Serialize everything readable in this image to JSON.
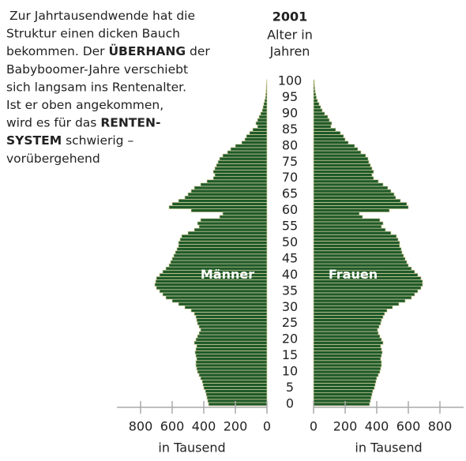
{
  "chart_data": {
    "type": "pyramid",
    "title": "2001",
    "y_label": [
      "Alter in",
      "Jahren"
    ],
    "annotation": [
      [
        {
          "text": "Zur Jahrtausendwende hat die"
        }
      ],
      [
        {
          "text": "Struktur einen dicken Bauch"
        }
      ],
      [
        {
          "text": "bekommen. Der "
        },
        {
          "text": "ÜBERHANG",
          "bold": true
        },
        {
          "text": " der"
        }
      ],
      [
        {
          "text": "Babyboomer-Jahre verschiebt"
        }
      ],
      [
        {
          "text": "sich langsam ins Rentenalter."
        }
      ],
      [
        {
          "text": "Ist er oben angekommen,"
        }
      ],
      [
        {
          "text": "wird es für das "
        },
        {
          "text": "RENTEN-",
          "bold": true
        }
      ],
      [
        {
          "text": "SYSTEM",
          "bold": true
        },
        {
          "text": " schwierig –"
        }
      ],
      [
        {
          "text": "vorübergehend"
        }
      ]
    ],
    "x_label": "in Tausend",
    "categories": [
      0,
      1,
      2,
      3,
      4,
      5,
      6,
      7,
      8,
      9,
      10,
      11,
      12,
      13,
      14,
      15,
      16,
      17,
      18,
      19,
      20,
      21,
      22,
      23,
      24,
      25,
      26,
      27,
      28,
      29,
      30,
      31,
      32,
      33,
      34,
      35,
      36,
      37,
      38,
      39,
      40,
      41,
      42,
      43,
      44,
      45,
      46,
      47,
      48,
      49,
      50,
      51,
      52,
      53,
      54,
      55,
      56,
      57,
      58,
      59,
      60,
      61,
      62,
      63,
      64,
      65,
      66,
      67,
      68,
      69,
      70,
      71,
      72,
      73,
      74,
      75,
      76,
      77,
      78,
      79,
      80,
      81,
      82,
      83,
      84,
      85,
      86,
      87,
      88,
      89,
      90,
      91,
      92,
      93,
      94,
      95,
      96,
      97,
      98,
      99,
      100
    ],
    "ylim": [
      -0.5,
      100.5
    ],
    "yticks": [
      0,
      5,
      10,
      15,
      20,
      25,
      30,
      35,
      40,
      45,
      50,
      55,
      60,
      65,
      70,
      75,
      80,
      85,
      90,
      95,
      100
    ],
    "xlim": [
      0,
      950
    ],
    "xticks": [
      0,
      200,
      400,
      600,
      800
    ],
    "bar_color": "#1f5a2a",
    "edge_color": "#d8d2a0",
    "series": [
      {
        "name": "Männer",
        "side": "left",
        "values": [
          370,
          375,
          380,
          385,
          390,
          400,
          405,
          410,
          420,
          430,
          440,
          445,
          450,
          450,
          445,
          450,
          455,
          450,
          445,
          460,
          450,
          440,
          430,
          420,
          430,
          440,
          445,
          450,
          460,
          480,
          520,
          560,
          600,
          640,
          660,
          680,
          700,
          710,
          705,
          700,
          680,
          660,
          640,
          620,
          610,
          600,
          590,
          580,
          570,
          560,
          560,
          550,
          540,
          500,
          460,
          430,
          440,
          420,
          300,
          280,
          480,
          620,
          600,
          560,
          520,
          500,
          480,
          460,
          420,
          380,
          340,
          330,
          340,
          330,
          320,
          310,
          300,
          280,
          250,
          230,
          200,
          160,
          140,
          130,
          110,
          90,
          60,
          70,
          60,
          50,
          40,
          30,
          25,
          20,
          15,
          10,
          8,
          6,
          5,
          4,
          3
        ]
      },
      {
        "name": "Frauen",
        "side": "right",
        "values": [
          355,
          360,
          365,
          370,
          375,
          385,
          390,
          395,
          400,
          410,
          420,
          425,
          430,
          430,
          425,
          430,
          435,
          430,
          425,
          440,
          430,
          420,
          410,
          405,
          415,
          425,
          430,
          440,
          450,
          465,
          500,
          540,
          580,
          620,
          640,
          660,
          680,
          690,
          690,
          680,
          660,
          640,
          620,
          600,
          590,
          580,
          570,
          560,
          555,
          545,
          545,
          535,
          525,
          490,
          455,
          430,
          440,
          420,
          310,
          290,
          480,
          600,
          590,
          550,
          520,
          510,
          490,
          470,
          440,
          410,
          380,
          370,
          380,
          370,
          360,
          350,
          345,
          330,
          300,
          280,
          260,
          220,
          200,
          190,
          170,
          140,
          110,
          115,
          100,
          90,
          70,
          55,
          45,
          35,
          25,
          18,
          14,
          10,
          8,
          6,
          5
        ]
      }
    ]
  }
}
